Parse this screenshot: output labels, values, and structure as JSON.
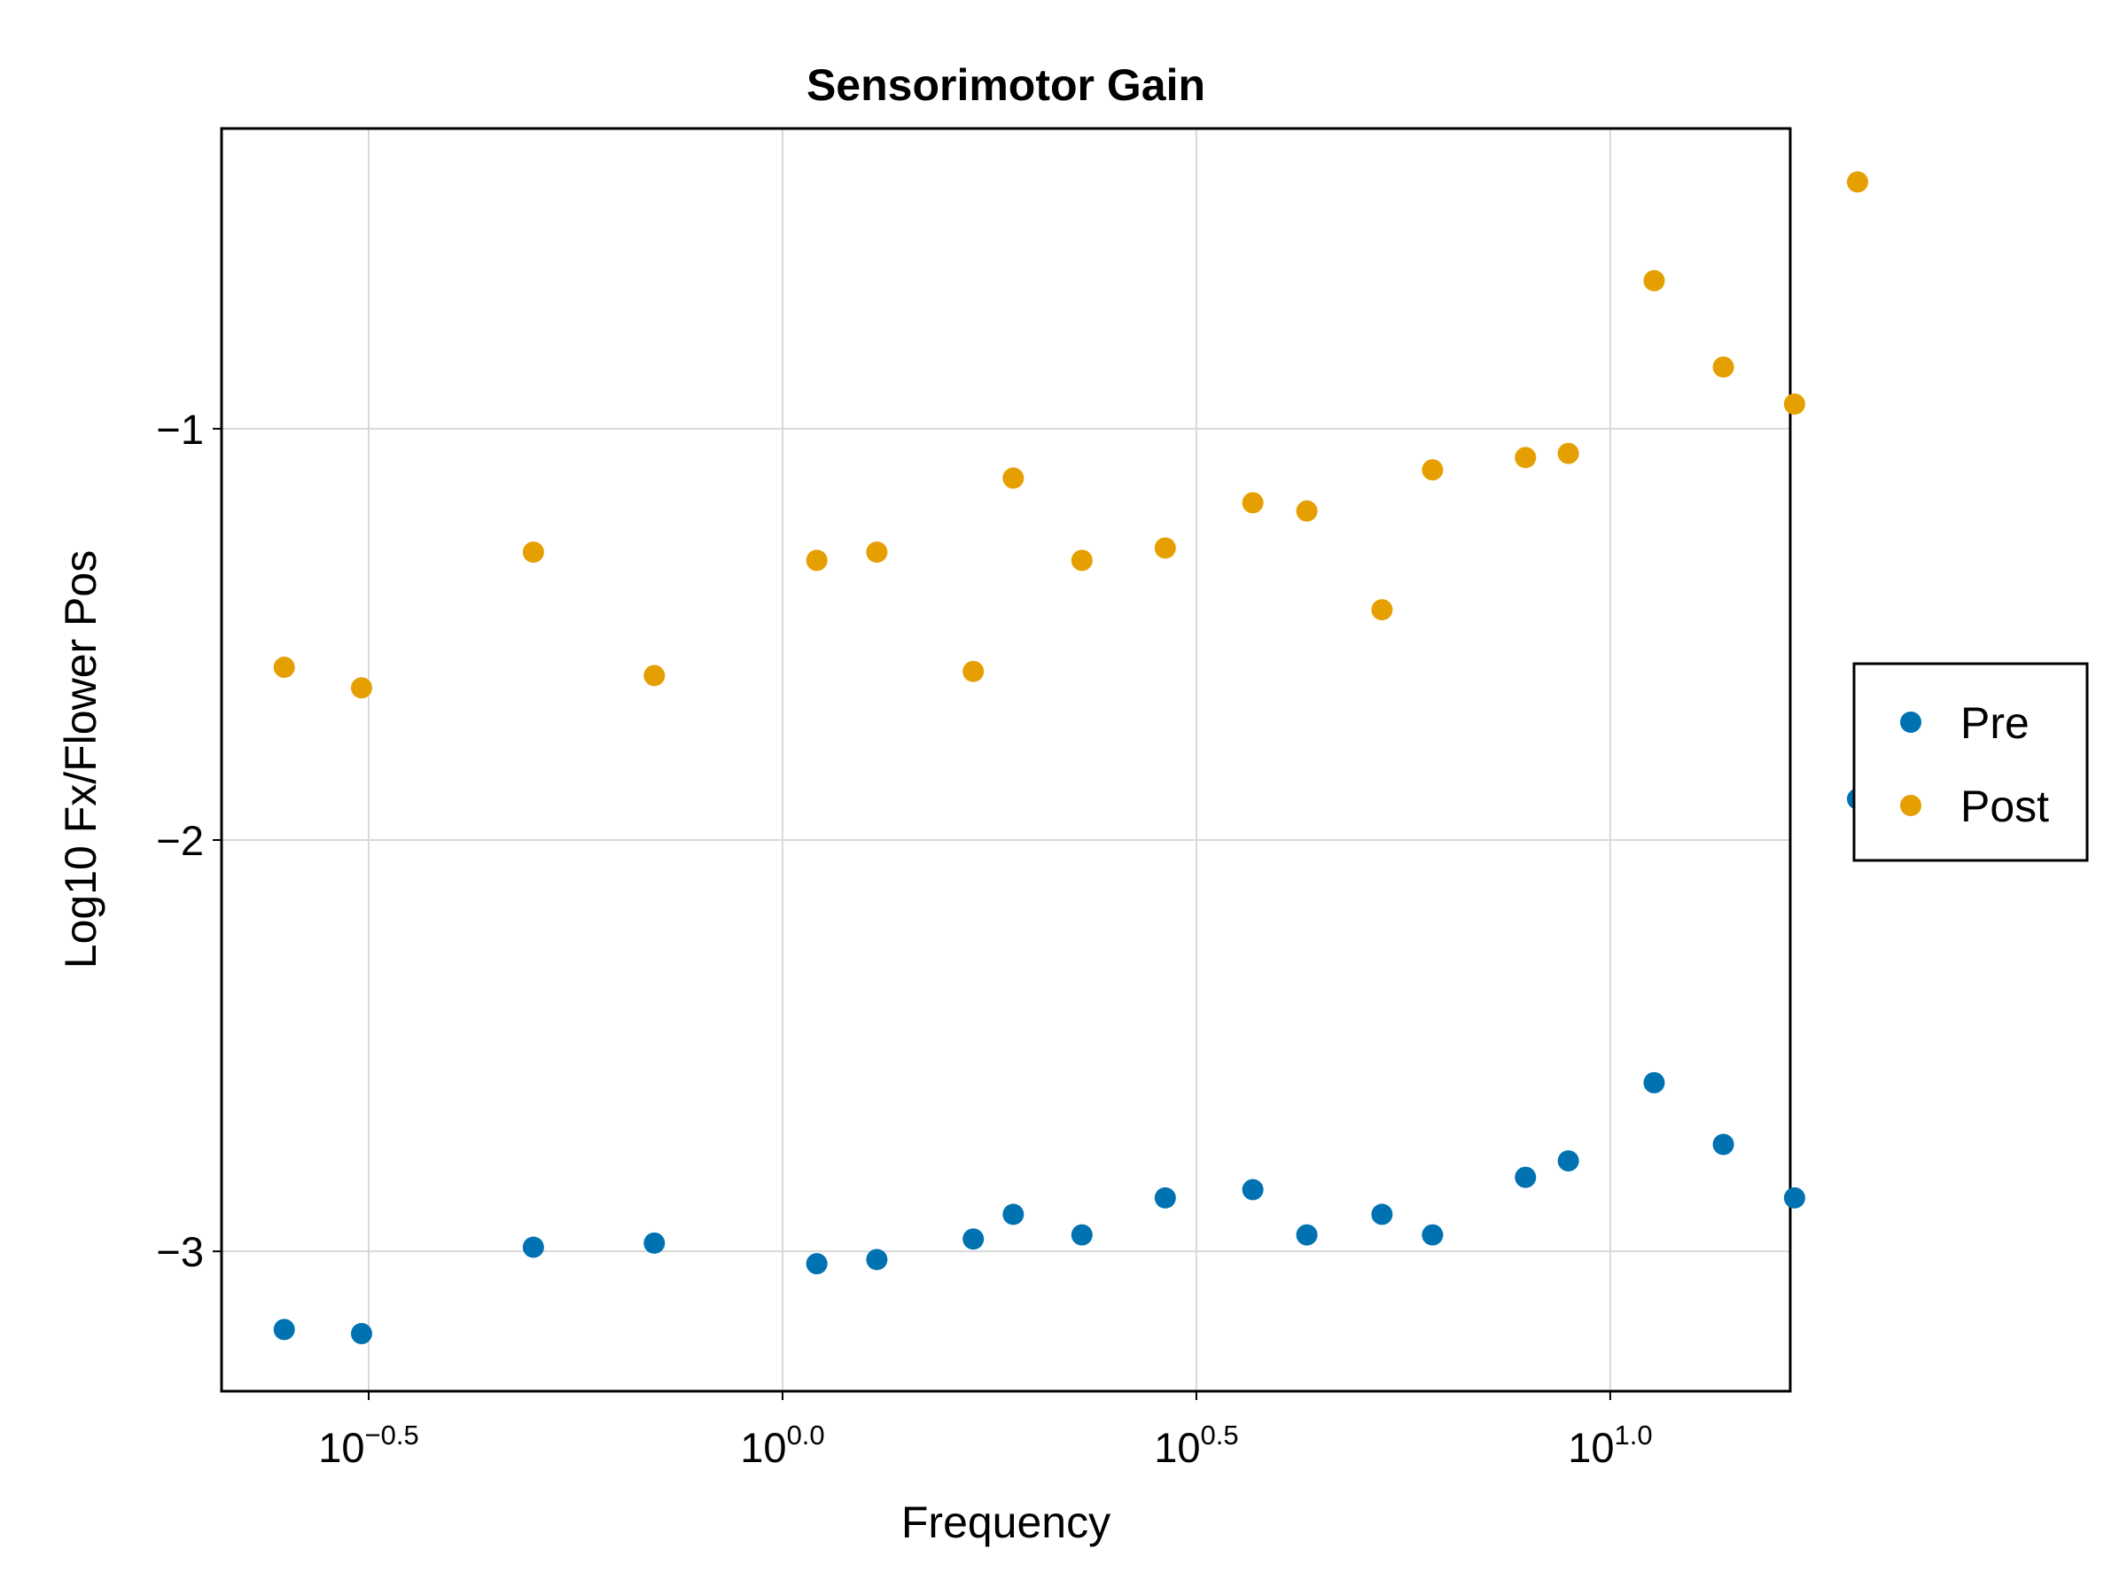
{
  "chart_data": {
    "type": "scatter",
    "title": "Sensorimotor Gain",
    "xlabel": "Frequency",
    "ylabel": "Log10 Fx/Flower Pos",
    "x_scale": "log10",
    "xlim": [
      0.21,
      16.5
    ],
    "ylim": [
      -3.34,
      -0.27
    ],
    "x_ticks": [
      {
        "base": "10",
        "exp": "−0.5",
        "value": 0.3162
      },
      {
        "base": "10",
        "exp": "0.0",
        "value": 1.0
      },
      {
        "base": "10",
        "exp": "0.5",
        "value": 3.1623
      },
      {
        "base": "10",
        "exp": "1.0",
        "value": 10.0
      }
    ],
    "y_ticks": [
      {
        "label": "−1",
        "value": -1
      },
      {
        "label": "−2",
        "value": -2
      },
      {
        "label": "−3",
        "value": -3
      }
    ],
    "grid": true,
    "legend_position": "right",
    "series": [
      {
        "name": "Pre",
        "color": "#0072b2",
        "points": [
          {
            "x": 0.25,
            "y": -3.19
          },
          {
            "x": 0.31,
            "y": -3.2
          },
          {
            "x": 0.5,
            "y": -2.99
          },
          {
            "x": 0.7,
            "y": -2.98
          },
          {
            "x": 1.1,
            "y": -3.03
          },
          {
            "x": 1.3,
            "y": -3.02
          },
          {
            "x": 1.7,
            "y": -2.97
          },
          {
            "x": 1.9,
            "y": -2.91
          },
          {
            "x": 2.3,
            "y": -2.96
          },
          {
            "x": 2.9,
            "y": -2.87
          },
          {
            "x": 3.7,
            "y": -2.85
          },
          {
            "x": 4.3,
            "y": -2.96
          },
          {
            "x": 5.3,
            "y": -2.91
          },
          {
            "x": 6.1,
            "y": -2.96
          },
          {
            "x": 7.9,
            "y": -2.82
          },
          {
            "x": 8.9,
            "y": -2.78
          },
          {
            "x": 11.3,
            "y": -2.59
          },
          {
            "x": 13.7,
            "y": -2.74
          },
          {
            "x": 16.7,
            "y": -2.87
          },
          {
            "x": 19.9,
            "y": -1.9
          }
        ]
      },
      {
        "name": "Post",
        "color": "#e69f00",
        "points": [
          {
            "x": 0.25,
            "y": -1.58
          },
          {
            "x": 0.31,
            "y": -1.63
          },
          {
            "x": 0.5,
            "y": -1.3
          },
          {
            "x": 0.7,
            "y": -1.6
          },
          {
            "x": 1.1,
            "y": -1.32
          },
          {
            "x": 1.3,
            "y": -1.3
          },
          {
            "x": 1.7,
            "y": -1.59
          },
          {
            "x": 1.9,
            "y": -1.12
          },
          {
            "x": 2.3,
            "y": -1.32
          },
          {
            "x": 2.9,
            "y": -1.29
          },
          {
            "x": 3.7,
            "y": -1.18
          },
          {
            "x": 4.3,
            "y": -1.2
          },
          {
            "x": 5.3,
            "y": -1.44
          },
          {
            "x": 6.1,
            "y": -1.1
          },
          {
            "x": 7.9,
            "y": -1.07
          },
          {
            "x": 8.9,
            "y": -1.06
          },
          {
            "x": 11.3,
            "y": -0.64
          },
          {
            "x": 13.7,
            "y": -0.85
          },
          {
            "x": 16.7,
            "y": -0.94
          },
          {
            "x": 19.9,
            "y": -0.4
          }
        ]
      }
    ]
  }
}
